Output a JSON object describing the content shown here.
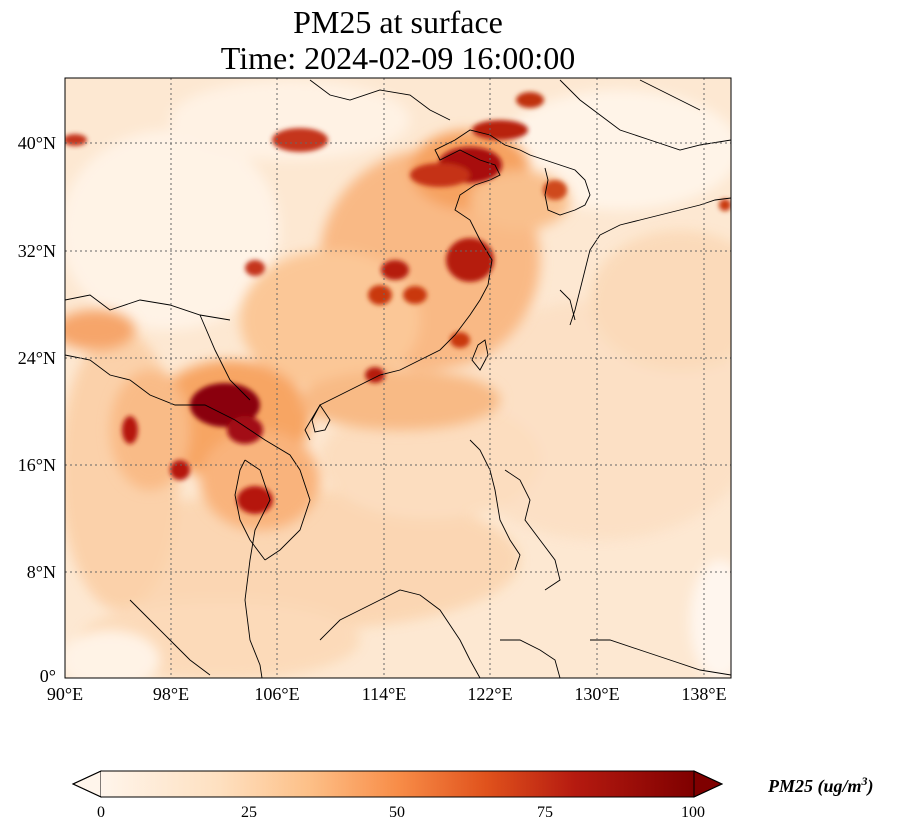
{
  "title_line1": "PM25 at surface",
  "title_line2": "Time: 2024-02-09 16:00:00",
  "map": {
    "lat_labels": [
      "40°N",
      "32°N",
      "24°N",
      "16°N",
      "8°N",
      "0°"
    ],
    "lon_labels": [
      "90°E",
      "98°E",
      "106°E",
      "114°E",
      "122°E",
      "130°E",
      "138°E"
    ],
    "extent": {
      "lon_min": 90,
      "lon_max": 139.5,
      "lat_min": 0,
      "lat_max": 45
    },
    "gridlines": "dotted"
  },
  "colorbar": {
    "ticks": [
      "0",
      "25",
      "50",
      "75",
      "100"
    ],
    "label": "PM25 (ug/m",
    "label_sup": "3",
    "label_close": ")",
    "colormap": [
      "#fff5eb",
      "#fdd0a2",
      "#fd8d3c",
      "#d94801",
      "#a50f15",
      "#7f0000"
    ],
    "extend": "both"
  }
}
